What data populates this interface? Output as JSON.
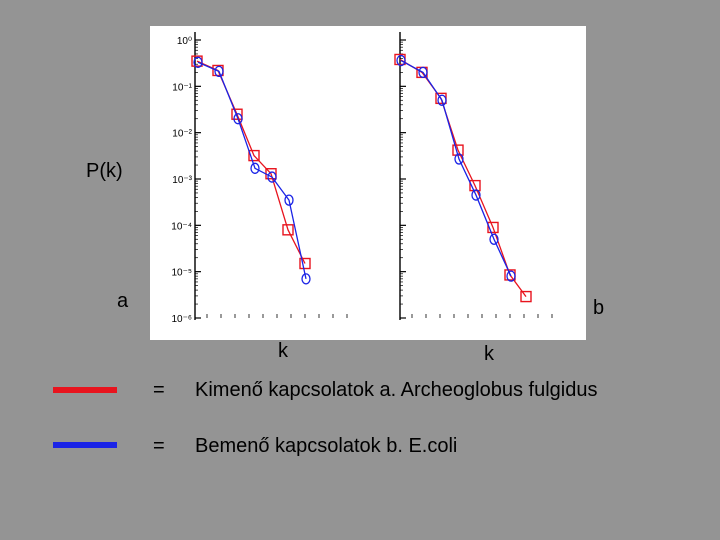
{
  "slide": {
    "ylabel": "P(k)",
    "panel_a_label": "a",
    "panel_b_label": "b",
    "xlabel_a": "k",
    "xlabel_b": "k"
  },
  "legend": [
    {
      "color": "#e8141e",
      "equals": "=",
      "text": "Kimenő kapcsolatok  a. Archeoglobus fulgidus"
    },
    {
      "color": "#1a23e6",
      "equals": "=",
      "text": "Bemenő kapcsolatok b. E.coli"
    }
  ],
  "colors": {
    "background": "#949494",
    "panel": "#ffffff",
    "out_series": "#e8141e",
    "in_series": "#1a23e6"
  },
  "chart_data": [
    {
      "type": "line",
      "panel": "a",
      "scale": {
        "y": "log"
      },
      "ylim": [
        1e-06,
        1
      ],
      "yticks": [
        "10⁰",
        "10⁻¹",
        "10⁻²",
        "10⁻³",
        "10⁻⁴",
        "10⁻⁵",
        "10⁻⁶"
      ],
      "series": [
        {
          "color": "#e8141e",
          "marker": "square",
          "y": [
            0.35,
            0.22,
            0.025,
            0.0032,
            0.0013,
            8e-05,
            1.5e-05
          ]
        },
        {
          "color": "#1a23e6",
          "marker": "circle",
          "y": [
            0.33,
            0.21,
            0.02,
            0.0017,
            0.0011,
            0.00035,
            7e-06
          ]
        }
      ]
    },
    {
      "type": "line",
      "panel": "b",
      "scale": {
        "y": "log"
      },
      "ylim": [
        1e-06,
        1
      ],
      "series": [
        {
          "color": "#e8141e",
          "marker": "square",
          "y": [
            0.38,
            0.2,
            0.055,
            0.0042,
            0.00072,
            9e-05,
            8.5e-06,
            2.9e-06
          ]
        },
        {
          "color": "#1a23e6",
          "marker": "circle",
          "y": [
            0.36,
            0.2,
            0.05,
            0.0027,
            0.00045,
            5e-05,
            8e-06
          ]
        }
      ]
    }
  ]
}
